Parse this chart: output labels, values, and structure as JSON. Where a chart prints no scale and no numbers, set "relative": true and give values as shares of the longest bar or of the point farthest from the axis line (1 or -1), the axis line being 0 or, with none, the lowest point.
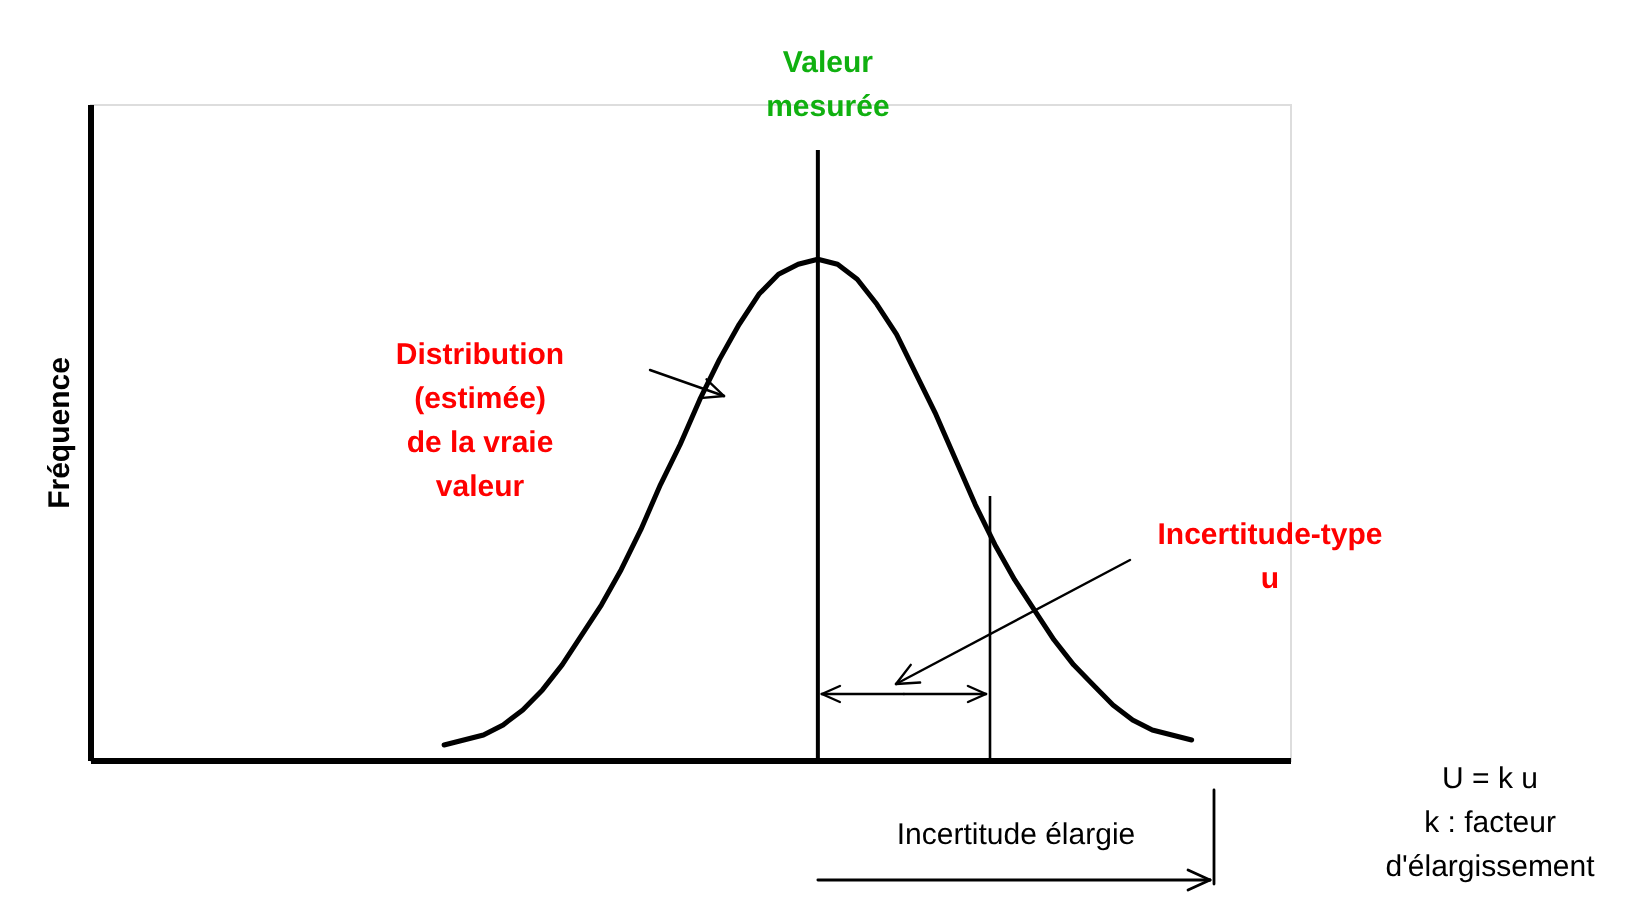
{
  "chart_data": {
    "type": "line",
    "relative": true,
    "ylabel": "Fréquence",
    "tick_labels": false,
    "grid": false,
    "marker": "none",
    "line_style": "solid",
    "categories": [
      null,
      null,
      null,
      null,
      null,
      null,
      null,
      null,
      null,
      null,
      null,
      null,
      null,
      null,
      null,
      null,
      null,
      null,
      null,
      null,
      null,
      null,
      null,
      null,
      null,
      null,
      null,
      null,
      null,
      null,
      null,
      null,
      null,
      null,
      null,
      null,
      null,
      null,
      null,
      null,
      null,
      null,
      null,
      null,
      null,
      null,
      null,
      null,
      null,
      null,
      null,
      null,
      null,
      null,
      null,
      null,
      null,
      null,
      null,
      null,
      null,
      null
    ],
    "series": [
      {
        "color": "#000000",
        "values": [
          null,
          null,
          null,
          null,
          null,
          null,
          null,
          null,
          null,
          null,
          null,
          null,
          null,
          null,
          null,
          null,
          null,
          null,
          null,
          0.03,
          0.04,
          0.05,
          0.07,
          0.1,
          0.14,
          0.19,
          0.25,
          0.31,
          0.38,
          0.46,
          0.55,
          0.63,
          0.72,
          0.8,
          0.87,
          0.93,
          0.97,
          0.99,
          1,
          0.99,
          0.96,
          0.91,
          0.85,
          0.77,
          0.69,
          0.6,
          0.51,
          0.43,
          0.36,
          0.3,
          0.24,
          0.19,
          0.15,
          0.11,
          0.08,
          0.06,
          0.05,
          0.04,
          null,
          null,
          null,
          null
        ]
      }
    ],
    "annotations": [
      "Valeur mesurée",
      "Distribution\n(estimée)\nde la vraie\nvaleur",
      "Incertitude-type\nu",
      "Incertitude élargie",
      "U = k u\nk : facteur\nd'élargissement"
    ]
  }
}
